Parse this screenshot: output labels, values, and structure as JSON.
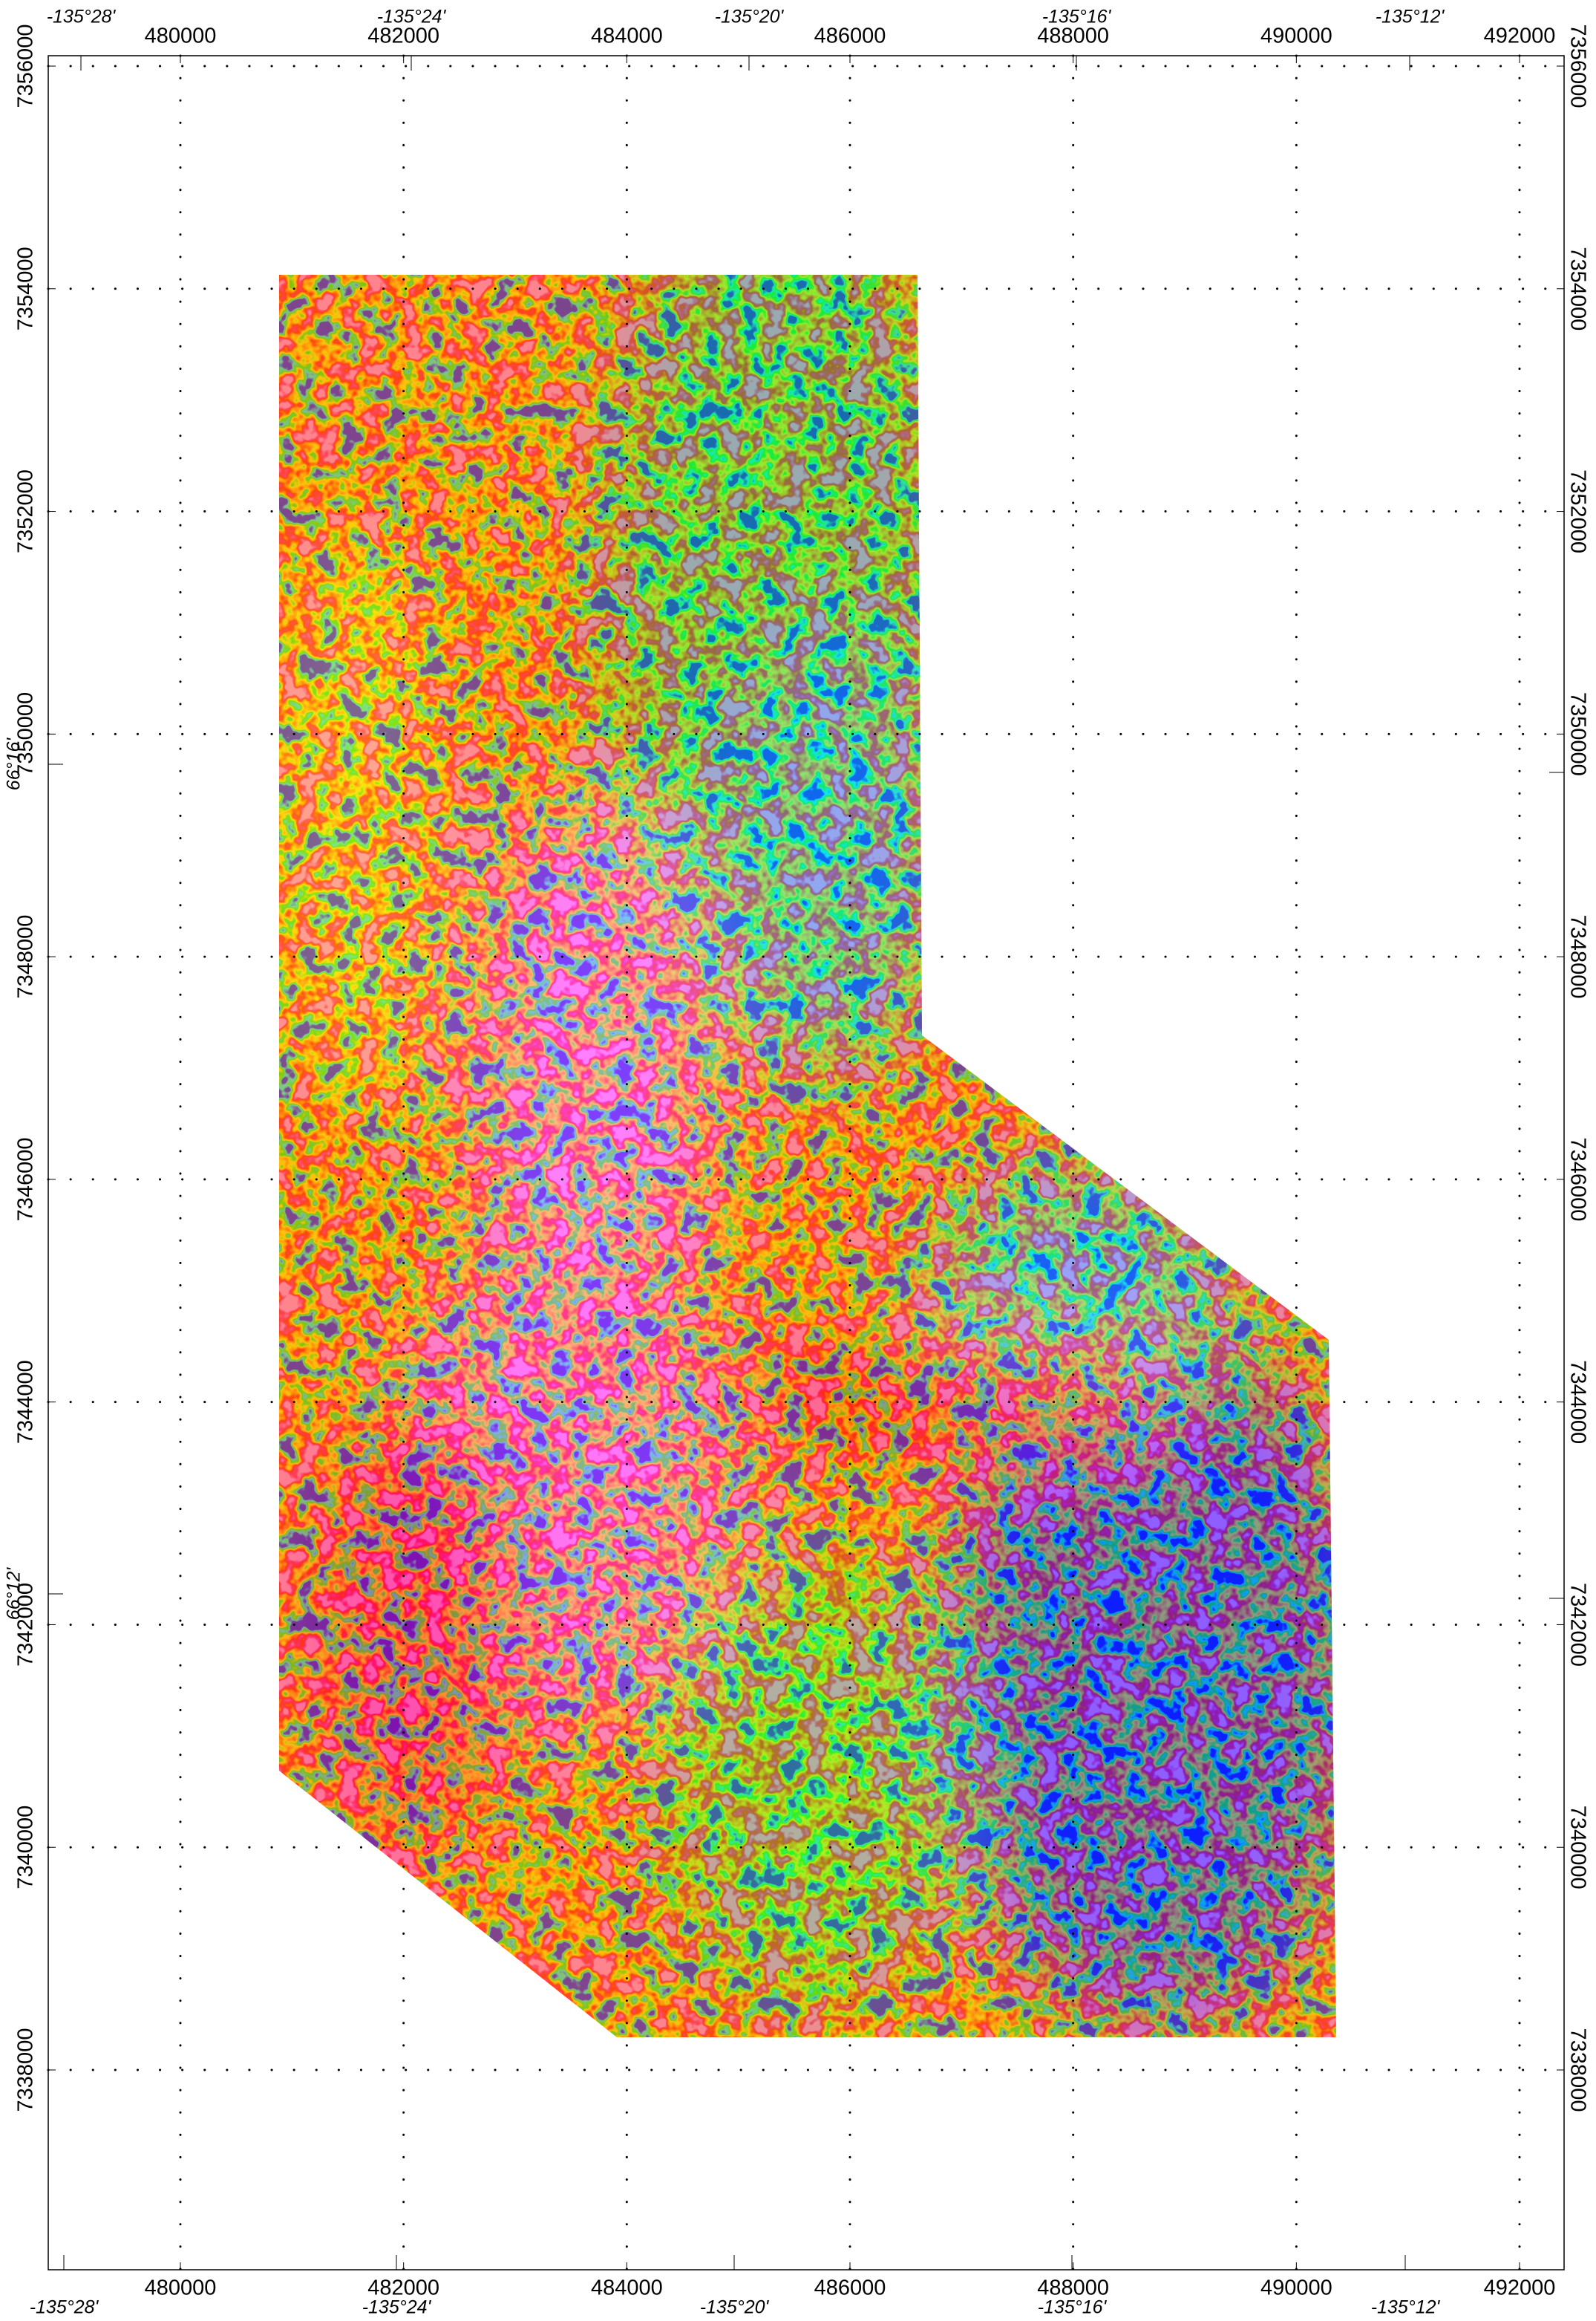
{
  "map": {
    "eastings": [
      480000,
      482000,
      484000,
      486000,
      488000,
      490000,
      492000
    ],
    "northings": [
      7338000,
      7340000,
      7342000,
      7344000,
      7346000,
      7348000,
      7350000,
      7352000,
      7354000,
      7356000
    ],
    "longitudes": [
      "-135°28'",
      "-135°24'",
      "-135°20'",
      "-135°16'",
      "-135°12'"
    ],
    "latitudes": [
      "66°16'",
      "66°12'"
    ]
  }
}
